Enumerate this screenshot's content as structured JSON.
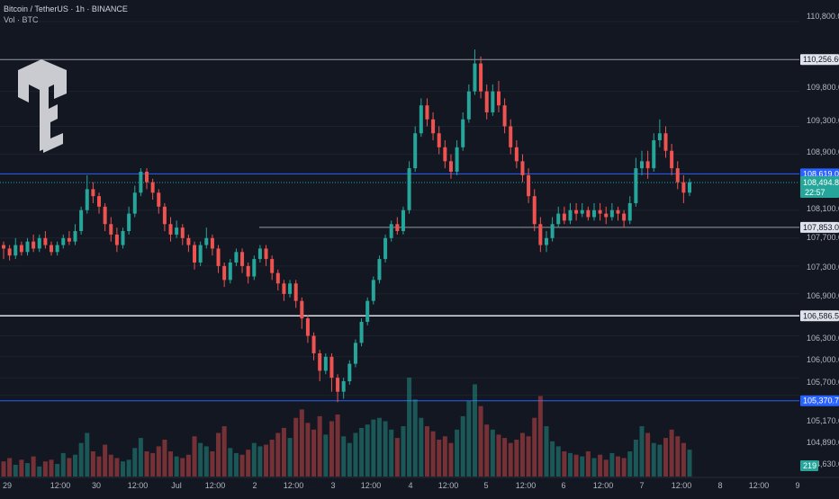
{
  "header": {
    "title": "Bitcoin / TetherUS · 1h · BINANCE",
    "volume_label": "Vol · BTC"
  },
  "colors": {
    "background": "#131722",
    "up": "#26a69a",
    "down": "#ef5350",
    "level_white": "#b2b5be",
    "level_blue": "#2962ff",
    "grid": "#1e222d"
  },
  "chart_data": {
    "type": "candlestick",
    "symbol": "Bitcoin / TetherUS",
    "interval": "1h",
    "exchange": "BINANCE",
    "y_ticks": [
      "110,800.00",
      "109,800.00",
      "109,300.00",
      "108,900.00",
      "108,100.00",
      "107,700.00",
      "107,300.00",
      "106,900.00",
      "106,300.00",
      "106,000.00",
      "105,700.00",
      "105,450.00",
      "105,170.00",
      "104,890.00",
      "104,630.00"
    ],
    "y_tick_values": [
      110800,
      109800,
      109300,
      108900,
      108100,
      107700,
      107300,
      106900,
      106300,
      106000,
      105700,
      105450,
      105170,
      104890,
      104630
    ],
    "x_ticks": [
      "29",
      "12:00",
      "30",
      "12:00",
      "Jul",
      "12:00",
      "2",
      "12:00",
      "3",
      "12:00",
      "4",
      "12:00",
      "5",
      "12:00",
      "6",
      "12:00",
      "7",
      "12:00",
      "8",
      "12:00",
      "9"
    ],
    "levels": [
      {
        "label": "110,256.60",
        "value": 110256.6,
        "style": "white"
      },
      {
        "label": "108,619.09",
        "value": 108619.09,
        "style": "blue"
      },
      {
        "label": "107,853.00",
        "value": 107853,
        "style": "white"
      },
      {
        "label": "106,586.58",
        "value": 106586.58,
        "style": "white-bright"
      },
      {
        "label": "105,370.74",
        "value": 105370.74,
        "style": "blue"
      }
    ],
    "current_price": {
      "label": "108,494.80",
      "value": 108494.8,
      "countdown": "22:57"
    },
    "volume_badge": "219",
    "candles": [
      [
        107600,
        107550,
        107400,
        107650
      ],
      [
        107550,
        107450,
        107380,
        107600
      ],
      [
        107450,
        107600,
        107400,
        107700
      ],
      [
        107600,
        107500,
        107450,
        107650
      ],
      [
        107500,
        107650,
        107450,
        107700
      ],
      [
        107650,
        107550,
        107500,
        107750
      ],
      [
        107550,
        107700,
        107500,
        107750
      ],
      [
        107700,
        107600,
        107550,
        107800
      ],
      [
        107600,
        107500,
        107450,
        107650
      ],
      [
        107500,
        107600,
        107450,
        107650
      ],
      [
        107600,
        107700,
        107550,
        107750
      ],
      [
        107700,
        107650,
        107600,
        107800
      ],
      [
        107650,
        107800,
        107600,
        107900
      ],
      [
        107800,
        108100,
        107750,
        108150
      ],
      [
        108100,
        108400,
        108050,
        108600
      ],
      [
        108400,
        108300,
        108200,
        108500
      ],
      [
        108300,
        108150,
        108050,
        108350
      ],
      [
        108150,
        107900,
        107800,
        108200
      ],
      [
        107900,
        107750,
        107650,
        108000
      ],
      [
        107750,
        107600,
        107500,
        107850
      ],
      [
        107600,
        107800,
        107550,
        107850
      ],
      [
        107800,
        108050,
        107750,
        108150
      ],
      [
        108050,
        108350,
        108000,
        108450
      ],
      [
        108350,
        108650,
        108300,
        108700
      ],
      [
        108650,
        108500,
        108400,
        108700
      ],
      [
        108500,
        108350,
        108250,
        108550
      ],
      [
        108350,
        108150,
        108050,
        108400
      ],
      [
        108150,
        107900,
        107800,
        108200
      ],
      [
        107900,
        107750,
        107650,
        108000
      ],
      [
        107750,
        107850,
        107700,
        107950
      ],
      [
        107850,
        107700,
        107600,
        107900
      ],
      [
        107700,
        107600,
        107500,
        107750
      ],
      [
        107600,
        107350,
        107250,
        107650
      ],
      [
        107350,
        107600,
        107300,
        107650
      ],
      [
        107600,
        107700,
        107550,
        107850
      ],
      [
        107700,
        107550,
        107450,
        107750
      ],
      [
        107550,
        107300,
        107200,
        107600
      ],
      [
        107300,
        107100,
        107000,
        107350
      ],
      [
        107100,
        107350,
        107050,
        107400
      ],
      [
        107350,
        107500,
        107300,
        107550
      ],
      [
        107500,
        107300,
        107200,
        107550
      ],
      [
        107300,
        107150,
        107050,
        107350
      ],
      [
        107150,
        107400,
        107100,
        107450
      ],
      [
        107400,
        107550,
        107350,
        107600
      ],
      [
        107550,
        107400,
        107300,
        107600
      ],
      [
        107400,
        107200,
        107100,
        107450
      ],
      [
        107200,
        107050,
        106950,
        107250
      ],
      [
        107050,
        106900,
        106800,
        107100
      ],
      [
        106900,
        107050,
        106850,
        107100
      ],
      [
        107050,
        106800,
        106700,
        107100
      ],
      [
        106800,
        106550,
        106400,
        106850
      ],
      [
        106550,
        106300,
        106200,
        106600
      ],
      [
        106300,
        106050,
        105950,
        106350
      ],
      [
        106050,
        105800,
        105650,
        106100
      ],
      [
        105800,
        106000,
        105750,
        106050
      ],
      [
        106000,
        105700,
        105500,
        106050
      ],
      [
        105700,
        105500,
        105350,
        105750
      ],
      [
        105500,
        105650,
        105400,
        105700
      ],
      [
        105650,
        105900,
        105600,
        105950
      ],
      [
        105900,
        106200,
        105850,
        106250
      ],
      [
        106200,
        106500,
        106150,
        106550
      ],
      [
        106500,
        106800,
        106450,
        106850
      ],
      [
        106800,
        107100,
        106750,
        107150
      ],
      [
        107100,
        107400,
        107050,
        107450
      ],
      [
        107400,
        107700,
        107350,
        107750
      ],
      [
        107700,
        107900,
        107650,
        107950
      ],
      [
        107900,
        107800,
        107750,
        108000
      ],
      [
        107800,
        108100,
        107750,
        108150
      ],
      [
        108100,
        108700,
        108050,
        108800
      ],
      [
        108700,
        109200,
        108650,
        109300
      ],
      [
        109200,
        109600,
        109150,
        109700
      ],
      [
        109600,
        109400,
        109300,
        109700
      ],
      [
        109400,
        109200,
        109100,
        109500
      ],
      [
        109200,
        109000,
        108900,
        109300
      ],
      [
        109000,
        108800,
        108700,
        109100
      ],
      [
        108800,
        108650,
        108550,
        108900
      ],
      [
        108650,
        109000,
        108600,
        109100
      ],
      [
        109000,
        109400,
        108950,
        109500
      ],
      [
        109400,
        109800,
        109350,
        109900
      ],
      [
        109800,
        110200,
        109750,
        110400
      ],
      [
        110200,
        109800,
        109700,
        110300
      ],
      [
        109800,
        109500,
        109400,
        109900
      ],
      [
        109500,
        109800,
        109450,
        109900
      ],
      [
        109800,
        109600,
        109500,
        109950
      ],
      [
        109600,
        109300,
        109200,
        109700
      ],
      [
        109300,
        109000,
        108900,
        109400
      ],
      [
        109000,
        108800,
        108700,
        109100
      ],
      [
        108800,
        108600,
        108500,
        108900
      ],
      [
        108600,
        108300,
        108200,
        108700
      ],
      [
        108300,
        107900,
        107800,
        108400
      ],
      [
        107900,
        107600,
        107500,
        108000
      ],
      [
        107600,
        107700,
        107500,
        107800
      ],
      [
        107700,
        107900,
        107650,
        108000
      ],
      [
        107900,
        108050,
        107850,
        108150
      ],
      [
        108050,
        107950,
        107900,
        108150
      ],
      [
        107950,
        108100,
        107900,
        108200
      ],
      [
        108100,
        108050,
        107950,
        108200
      ],
      [
        108050,
        108100,
        108000,
        108200
      ],
      [
        108100,
        108000,
        107950,
        108150
      ],
      [
        108000,
        108100,
        107950,
        108200
      ],
      [
        108100,
        108050,
        107950,
        108200
      ],
      [
        108050,
        108000,
        107900,
        108150
      ],
      [
        108000,
        108100,
        107950,
        108200
      ],
      [
        108100,
        108050,
        107950,
        108150
      ],
      [
        108050,
        107950,
        107850,
        108100
      ],
      [
        107950,
        108200,
        107900,
        108300
      ],
      [
        108200,
        108700,
        108150,
        108850
      ],
      [
        108700,
        108800,
        108600,
        108950
      ],
      [
        108800,
        108700,
        108550,
        108950
      ],
      [
        108700,
        109100,
        108650,
        109200
      ],
      [
        109100,
        109200,
        109000,
        109400
      ],
      [
        109200,
        108950,
        108850,
        109300
      ],
      [
        108950,
        108700,
        108600,
        109050
      ],
      [
        108700,
        108500,
        108400,
        108800
      ],
      [
        108500,
        108350,
        108200,
        108600
      ],
      [
        108350,
        108500,
        108300,
        108550
      ]
    ],
    "volume": [
      18,
      22,
      14,
      20,
      16,
      24,
      12,
      18,
      20,
      15,
      28,
      22,
      26,
      40,
      52,
      30,
      24,
      38,
      26,
      22,
      18,
      20,
      34,
      46,
      30,
      28,
      36,
      44,
      30,
      24,
      22,
      26,
      48,
      40,
      36,
      30,
      52,
      60,
      34,
      28,
      26,
      32,
      40,
      36,
      38,
      44,
      52,
      58,
      46,
      70,
      80,
      64,
      56,
      72,
      50,
      66,
      74,
      48,
      40,
      52,
      58,
      62,
      68,
      70,
      66,
      56,
      46,
      60,
      118,
      92,
      70,
      60,
      54,
      44,
      48,
      40,
      56,
      72,
      90,
      110,
      84,
      62,
      56,
      50,
      46,
      40,
      44,
      52,
      48,
      70,
      96,
      60,
      42,
      36,
      30,
      28,
      26,
      24,
      30,
      22,
      26,
      20,
      28,
      24,
      22,
      30,
      44,
      60,
      52,
      40,
      38,
      46,
      56,
      48,
      40,
      32
    ],
    "volume_ticks": [
      "105,170.00",
      "104,890.00",
      "104,630.00"
    ]
  },
  "y_axis_labels": {
    "t0": "110,800.00",
    "t1": "109,800.00",
    "t2": "109,300.00",
    "t3": "108,900.00",
    "t4": "108,100.00",
    "t5": "107,700.00",
    "t6": "107,300.00",
    "t7": "106,900.00",
    "t8": "106,300.00",
    "t9": "106,000.00",
    "t10": "105,700.00",
    "t11": "105,450.00",
    "t12": "105,170.00",
    "t13": "104,890.00",
    "t14": "104,630.00"
  },
  "badges": {
    "lvl1": "110,256.60",
    "lvl2": "108,619.09",
    "lvl3": "107,853.00",
    "lvl4": "106,586.58",
    "lvl5": "105,370.74",
    "price": "108,494.80",
    "countdown": "22:57",
    "vol": "219"
  }
}
